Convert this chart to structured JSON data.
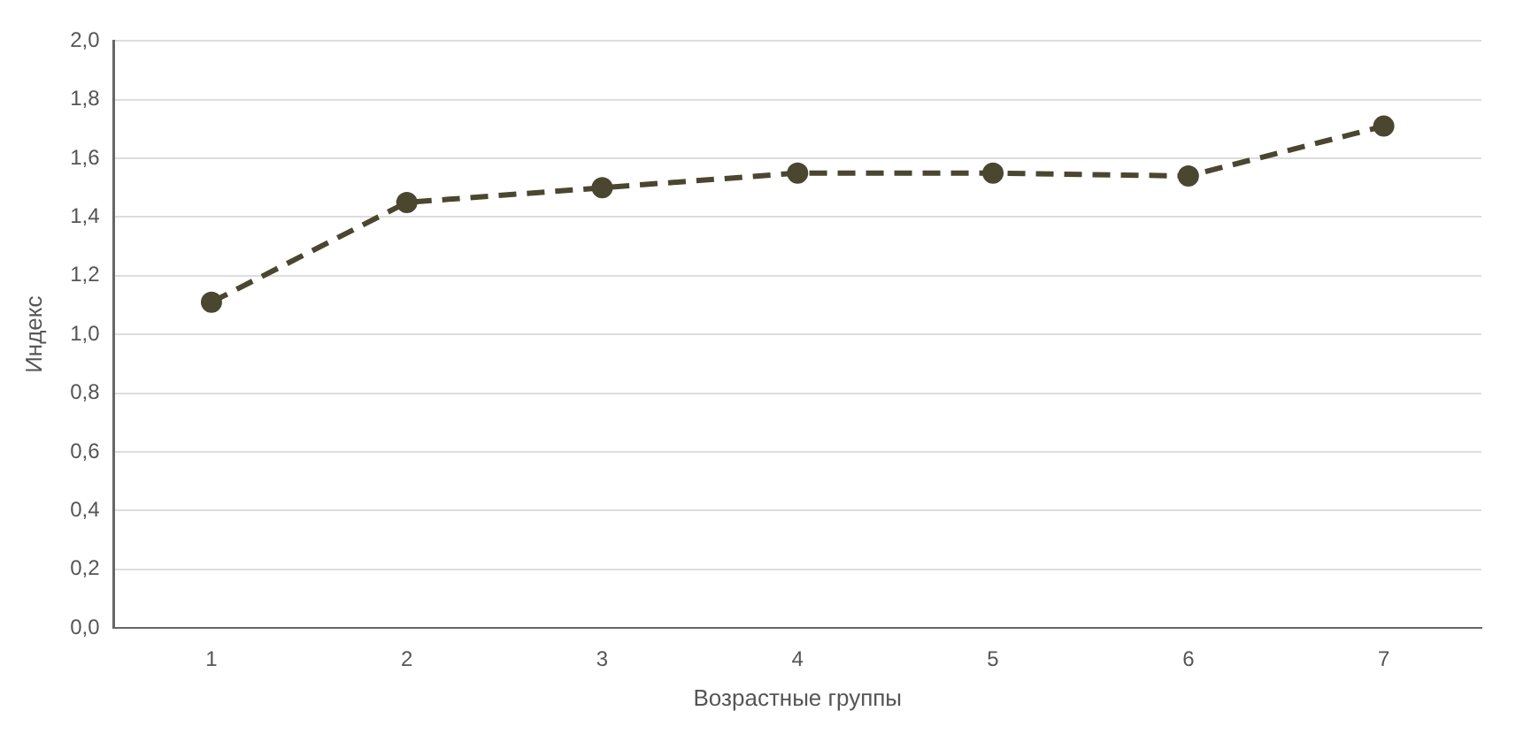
{
  "chart_data": {
    "type": "line",
    "xlabel": "Возрастные группы",
    "ylabel": "Индекс",
    "categories": [
      "1",
      "2",
      "3",
      "4",
      "5",
      "6",
      "7"
    ],
    "series": [
      {
        "color": "#4a4630",
        "values": [
          1.11,
          1.45,
          1.5,
          1.55,
          1.55,
          1.54,
          1.71
        ]
      }
    ],
    "ylim": [
      0,
      2
    ],
    "yticks": [
      {
        "value": 0,
        "label": "0,0"
      },
      {
        "value": 0.2,
        "label": "0,2"
      },
      {
        "value": 0.4,
        "label": "0,4"
      },
      {
        "value": 0.6,
        "label": "0,6"
      },
      {
        "value": 0.8,
        "label": "0,8"
      },
      {
        "value": 1,
        "label": "1,0"
      },
      {
        "value": 1.2,
        "label": "1,2"
      },
      {
        "value": 1.4,
        "label": "1,4"
      },
      {
        "value": 1.6,
        "label": "1,6"
      },
      {
        "value": 1.8,
        "label": "1,8"
      },
      {
        "value": 2,
        "label": "2,0"
      }
    ],
    "grid": "y",
    "marker": "circle",
    "line_style": "dashed",
    "legend": false
  }
}
